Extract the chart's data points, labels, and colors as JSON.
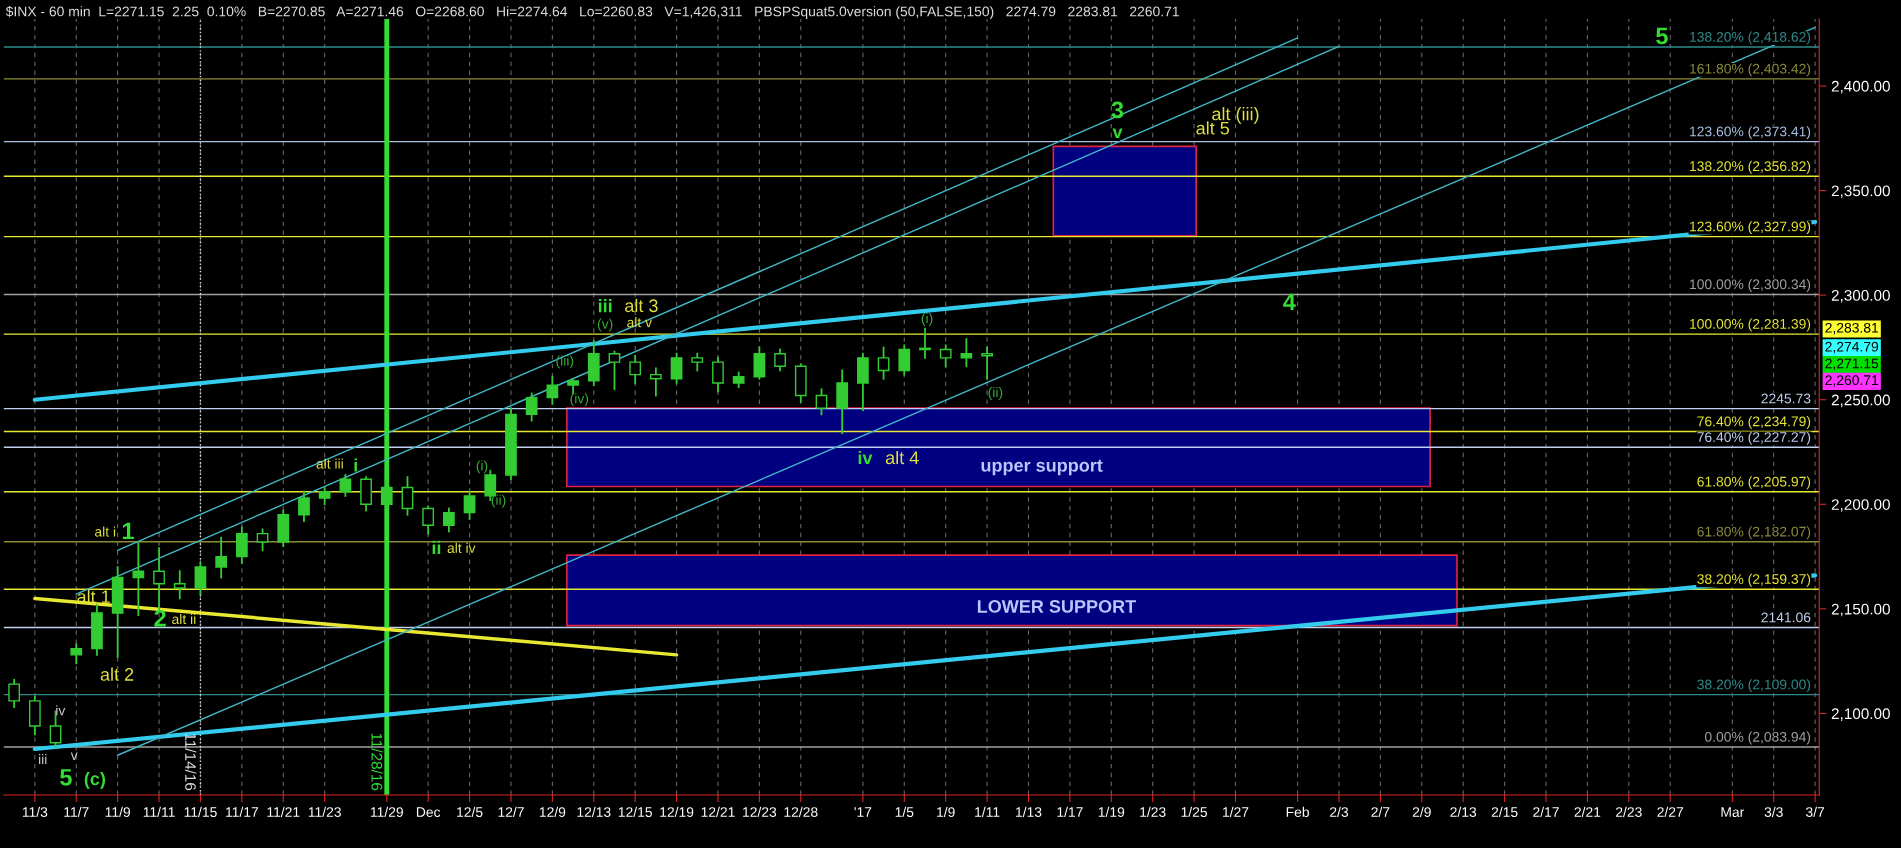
{
  "chart_data": {
    "type": "candlestick",
    "title": "$INX - 60 min  L=2271.15  2.25  0.10%   B=2270.85   A=2271.46   O=2268.60   Hi=2274.64   Lo=2260.83   V=1,426,311   PBSPSquat5.0version (50,FALSE,150)   2274.79   2283.81   2260.71",
    "color": "#33cc33",
    "categories": [
      null,
      "11/3",
      null,
      "11/7",
      null,
      "11/9",
      null,
      "11/11",
      null,
      "11/15",
      null,
      "11/17",
      null,
      "11/21",
      null,
      "11/23",
      null,
      null,
      "11/29",
      null,
      "Dec",
      null,
      "12/5",
      null,
      "12/7",
      null,
      "12/9",
      null,
      "12/13",
      null,
      "12/15",
      null,
      "12/19",
      null,
      "12/21",
      null,
      "12/23",
      null,
      "12/28",
      null,
      null,
      "'17",
      null,
      "1/5",
      null,
      "1/9",
      null,
      "1/11",
      null,
      "1/13",
      null,
      "1/17",
      null,
      "1/19",
      null,
      "1/23",
      null,
      "1/25",
      null,
      "1/27",
      null,
      null,
      "Feb",
      null,
      "2/3",
      null,
      "2/7",
      null,
      "2/9",
      null,
      "2/13",
      null,
      "2/15",
      null,
      "2/17",
      null,
      "2/21",
      null,
      "2/23",
      null,
      "2/27",
      null,
      null,
      "Mar",
      null,
      "3/3",
      null,
      "3/7"
    ],
    "ohlc": [
      [
        2114,
        2116,
        2103,
        2106
      ],
      [
        2106,
        2108,
        2090,
        2094
      ],
      [
        2094,
        2101,
        2084,
        2086
      ],
      [
        2128,
        2133,
        2124,
        2131
      ],
      [
        2131,
        2152,
        2128,
        2148
      ],
      [
        2148,
        2170,
        2127,
        2165
      ],
      [
        2165,
        2182,
        2147,
        2168
      ],
      [
        2168,
        2179,
        2149,
        2162
      ],
      [
        2162,
        2168,
        2155,
        2160
      ],
      [
        2160,
        2172,
        2157,
        2170
      ],
      [
        2170,
        2184,
        2165,
        2175
      ],
      [
        2175,
        2189,
        2172,
        2186
      ],
      [
        2186,
        2188,
        2178,
        2182
      ],
      [
        2182,
        2197,
        2180,
        2195
      ],
      [
        2195,
        2206,
        2192,
        2203
      ],
      [
        2203,
        2208,
        2200,
        2206
      ],
      [
        2206,
        2214,
        2204,
        2212
      ],
      [
        2212,
        2213,
        2197,
        2200
      ],
      [
        2200,
        2212,
        2198,
        2208
      ],
      [
        2208,
        2213,
        2195,
        2198
      ],
      [
        2198,
        2199,
        2186,
        2190
      ],
      [
        2190,
        2198,
        2187,
        2196
      ],
      [
        2196,
        2206,
        2193,
        2204
      ],
      [
        2204,
        2216,
        2202,
        2214
      ],
      [
        2214,
        2246,
        2212,
        2243
      ],
      [
        2243,
        2253,
        2240,
        2251
      ],
      [
        2251,
        2261,
        2248,
        2257
      ],
      [
        2257,
        2260,
        2253,
        2259
      ],
      [
        2259,
        2278,
        2257,
        2272
      ],
      [
        2272,
        2273,
        2255,
        2268
      ],
      [
        2268,
        2271,
        2258,
        2262
      ],
      [
        2262,
        2265,
        2252,
        2260
      ],
      [
        2260,
        2272,
        2258,
        2270
      ],
      [
        2270,
        2272,
        2264,
        2268
      ],
      [
        2268,
        2270,
        2254,
        2258
      ],
      [
        2258,
        2263,
        2256,
        2261
      ],
      [
        2261,
        2275,
        2260,
        2272
      ],
      [
        2272,
        2274,
        2264,
        2266
      ],
      [
        2266,
        2267,
        2249,
        2252
      ],
      [
        2252,
        2255,
        2243,
        2246
      ],
      [
        2246,
        2264,
        2234,
        2258
      ],
      [
        2258,
        2272,
        2245,
        2270
      ],
      [
        2270,
        2275,
        2260,
        2264
      ],
      [
        2264,
        2276,
        2262,
        2274
      ],
      [
        2274,
        2284,
        2270,
        2274
      ],
      [
        2274,
        2276,
        2266,
        2270
      ],
      [
        2270,
        2279,
        2266,
        2272
      ],
      [
        2272,
        2275,
        2260,
        2271
      ],
      null,
      null,
      null,
      null,
      null,
      null,
      null,
      null,
      null,
      null,
      null,
      null,
      null,
      null,
      null,
      null,
      null,
      null,
      null,
      null,
      null,
      null,
      null,
      null,
      null,
      null,
      null,
      null,
      null,
      null,
      null,
      null,
      null,
      null,
      null,
      null,
      null,
      null,
      null,
      null
    ],
    "series": [
      {
        "type": "line",
        "color": "#33ccee",
        "x": [
          "11/3",
          "3/7"
        ],
        "values": [
          2250,
          2335
        ]
      },
      {
        "type": "line",
        "color": "#33ccee",
        "x": [
          "11/3",
          "3/7"
        ],
        "values": [
          2083,
          2166
        ]
      },
      {
        "type": "line",
        "color": "#e8e833",
        "x": [
          "11/3",
          "12/19"
        ],
        "values": [
          2155,
          2128
        ]
      },
      {
        "type": "line",
        "color": "#40b8c8",
        "x": [
          "11/9",
          "Feb"
        ],
        "values": [
          2178,
          2423
        ]
      },
      {
        "type": "line",
        "color": "#40b8c8",
        "x": [
          "11/7",
          "2/3"
        ],
        "values": [
          2157,
          2419
        ]
      },
      {
        "type": "line",
        "color": "#40b8c8",
        "x": [
          "11/9",
          "3/7"
        ],
        "values": [
          2080,
          2428
        ]
      }
    ],
    "ylim": [
      2061,
      2432
    ],
    "yticks": [
      {
        "value": 2100,
        "label": "2,100.00"
      },
      {
        "value": 2150,
        "label": "2,150.00"
      },
      {
        "value": 2200,
        "label": "2,200.00"
      },
      {
        "value": 2250,
        "label": "2,250.00"
      },
      {
        "value": 2300,
        "label": "2,300.00"
      },
      {
        "value": 2350,
        "label": "2,350.00"
      },
      {
        "value": 2400,
        "label": "2,400.00"
      }
    ],
    "grid": "x",
    "ref_lines": [
      {
        "axis": "y",
        "value": 2418.62,
        "label": "138.20% (2,418.62)",
        "color": "#2e8b8b"
      },
      {
        "axis": "y",
        "value": 2403.42,
        "label": "161.80% (2,403.42)",
        "color": "#8b8b3a"
      },
      {
        "axis": "y",
        "value": 2373.41,
        "label": "123.60% (2,373.41)",
        "color": "#a8c0e0"
      },
      {
        "axis": "y",
        "value": 2356.82,
        "label": "138.20% (2,356.82)",
        "color": "#e8e833"
      },
      {
        "axis": "y",
        "value": 2327.99,
        "label": "123.60% (2,327.99)",
        "color": "#e8e833"
      },
      {
        "axis": "y",
        "value": 2300.34,
        "label": "100.00% (2,300.34)",
        "color": "#a0a0a0"
      },
      {
        "axis": "y",
        "value": 2281.39,
        "label": "100.00% (2,281.39)",
        "color": "#e8e833"
      },
      {
        "axis": "y",
        "value": 2245.73,
        "label": "2245.73",
        "color": "#c0d0f0"
      },
      {
        "axis": "y",
        "value": 2234.79,
        "label": "76.40% (2,234.79)",
        "color": "#e8e833"
      },
      {
        "axis": "y",
        "value": 2227.27,
        "label": "76.40% (2,227.27)",
        "color": "#c0d0f0"
      },
      {
        "axis": "y",
        "value": 2205.97,
        "label": "61.80% (2,205.97)",
        "color": "#e8e833"
      },
      {
        "axis": "y",
        "value": 2182.07,
        "label": "61.80% (2,182.07)",
        "color": "#8b8b3a"
      },
      {
        "axis": "y",
        "value": 2159.37,
        "label": "38.20% (2,159.37)",
        "color": "#e8e833"
      },
      {
        "axis": "y",
        "value": 2141.06,
        "label": "2141.06",
        "color": "#c0d0f0"
      },
      {
        "axis": "y",
        "value": 2109.0,
        "label": "38.20% (2,109.00)",
        "color": "#2e8b8b"
      },
      {
        "axis": "y",
        "value": 2083.94,
        "label": "0.00% (2,083.94)",
        "color": "#a0a0a0"
      },
      {
        "axis": "x",
        "value": "11/15",
        "label": "11/14/16",
        "color": "#dddddd",
        "line_style": "dotted"
      },
      {
        "axis": "x",
        "value": "11/29",
        "label": "11/28/16",
        "color": "#33dd33",
        "line_style": "solid"
      }
    ],
    "bands": [
      {
        "axis": "y",
        "from": 2208.5,
        "to": 2246,
        "label": "upper support",
        "color": "#000080"
      },
      {
        "axis": "y",
        "from": 2142,
        "to": 2175.7,
        "label": "LOWER SUPPORT",
        "color": "#000080"
      },
      {
        "axis": "y",
        "from": 2328.4,
        "to": 2371.1,
        "color": "#000080"
      }
    ],
    "annotations": [
      "alt i",
      "1",
      "alt 1",
      "2",
      "alt ii",
      "alt 2",
      "iv",
      "iii",
      "v",
      "5",
      "(c)",
      "alt iii",
      "i",
      "ii",
      "alt iv",
      "(i)",
      "(ii)",
      "(iii)",
      "(iv)",
      "iii",
      "(v)",
      "alt 3",
      "alt v",
      "(i)",
      "(ii)",
      "iv",
      "alt 4",
      "3",
      "v",
      "alt (iii)",
      "alt 5",
      "4",
      "5",
      "2,283.81",
      "2,274.79",
      "2,271.15",
      "2,260.71"
    ]
  }
}
